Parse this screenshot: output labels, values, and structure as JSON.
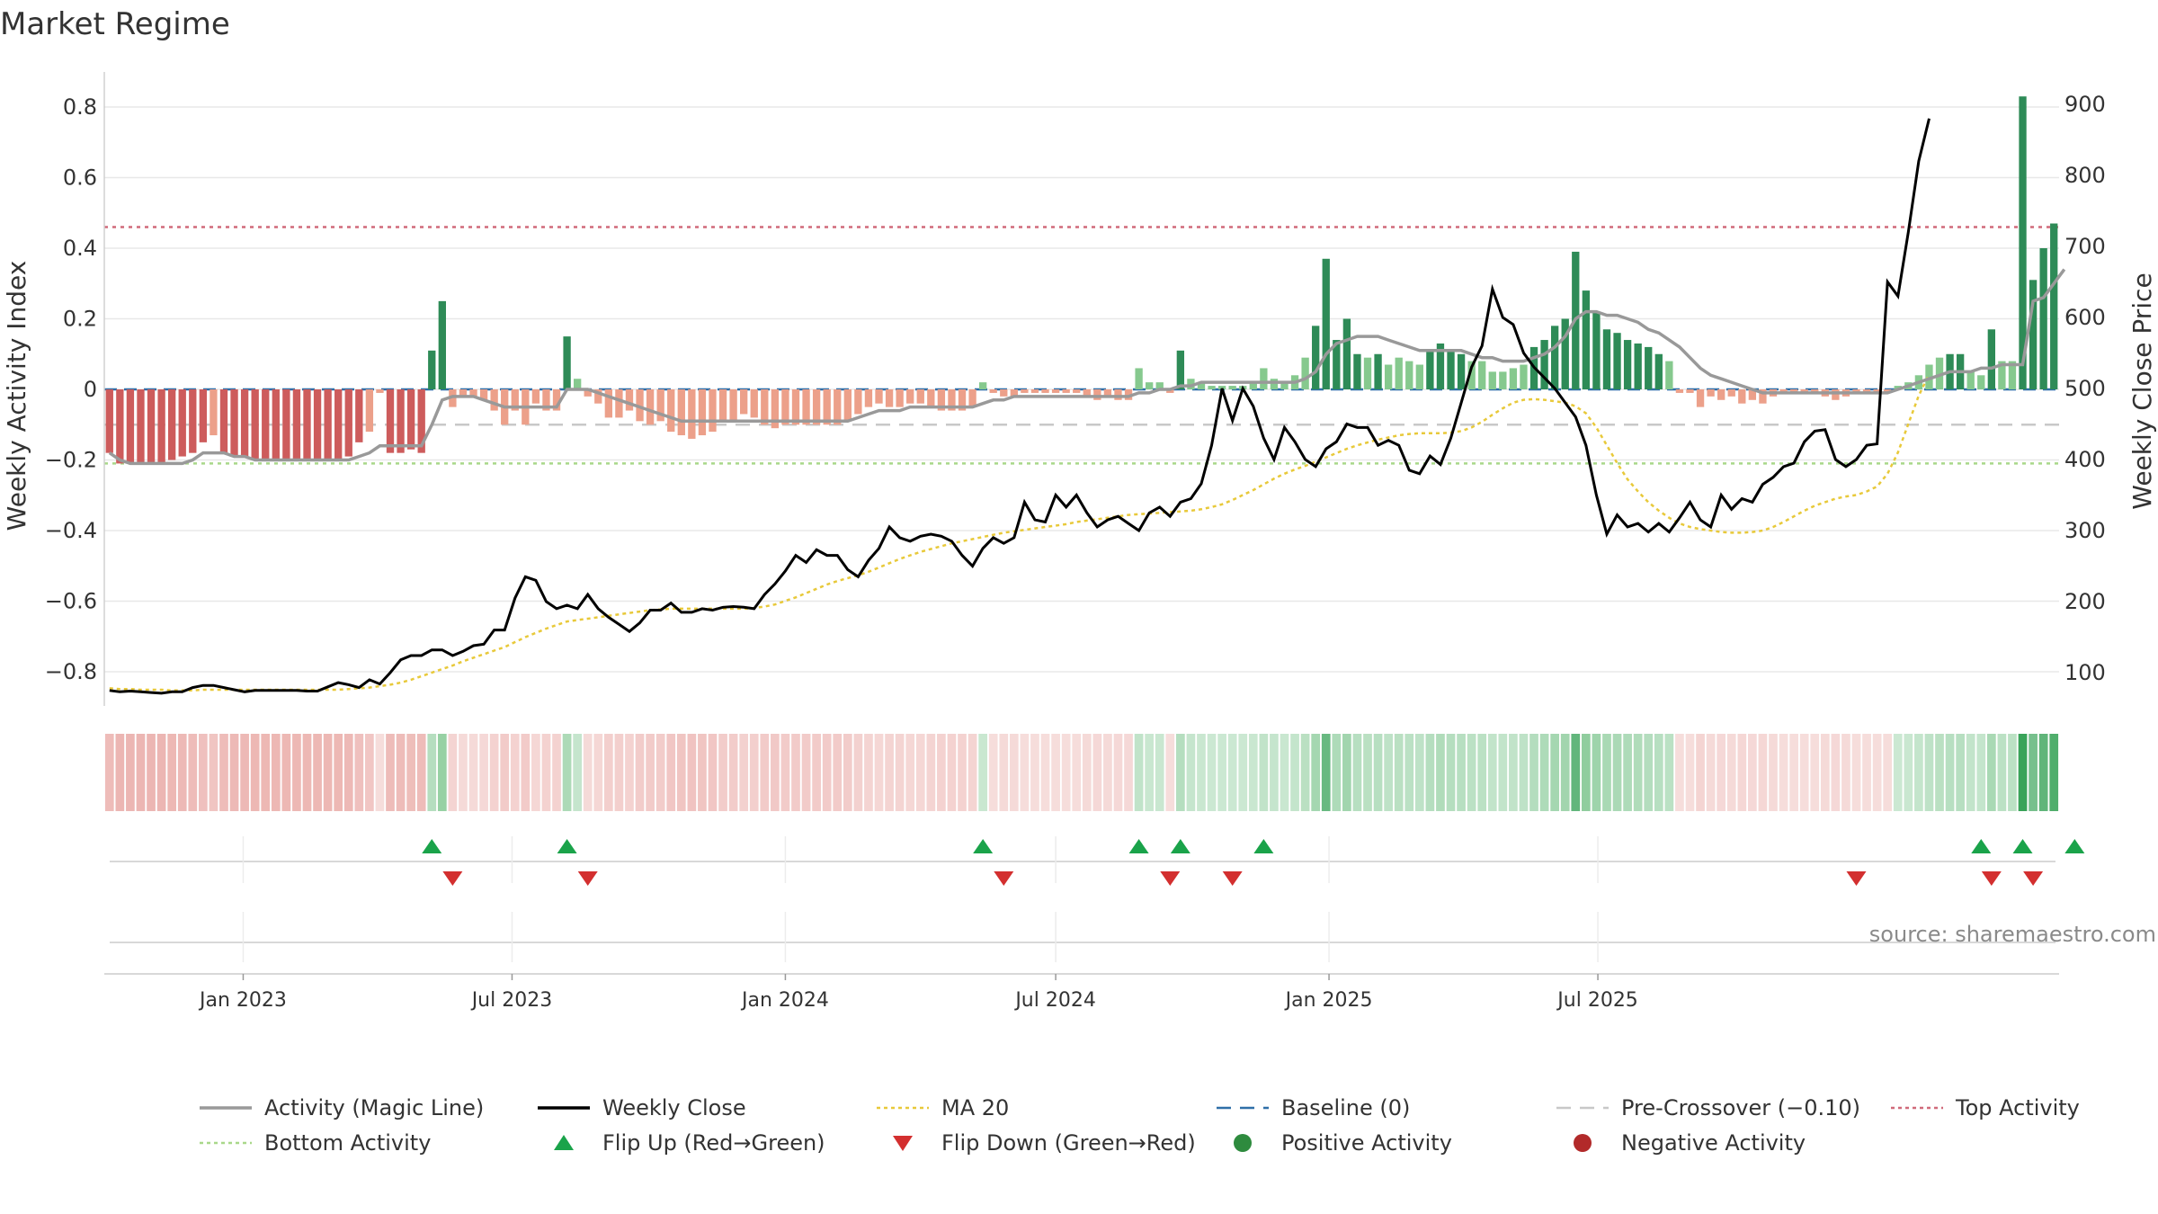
{
  "title": "Market Regime",
  "source": "source: sharemaestro.com",
  "chart_data": {
    "type": "bar",
    "start_date": "2022-10-03",
    "interval_days": 7,
    "y_left": {
      "label": "Weekly Activity Index",
      "min": -0.9,
      "max": 0.9,
      "ticks": [
        -0.8,
        -0.6,
        -0.4,
        -0.2,
        0,
        0.2,
        0.4,
        0.6,
        0.8
      ],
      "tick_labels": [
        "−0.8",
        "−0.6",
        "−0.4",
        "−0.2",
        "0",
        "0.2",
        "0.4",
        "0.6",
        "0.8"
      ]
    },
    "y_right": {
      "label": "Weekly Close Price",
      "min": 60,
      "max": 910,
      "ticks": [
        100,
        200,
        300,
        400,
        500,
        600,
        700,
        800,
        900
      ],
      "tick_labels": [
        "100",
        "200",
        "300",
        "400",
        "500",
        "600",
        "700",
        "800",
        "900"
      ]
    },
    "x_ticks": [
      {
        "date": "2023-01-01",
        "label": "Jan 2023"
      },
      {
        "date": "2023-07-01",
        "label": "Jul 2023"
      },
      {
        "date": "2024-01-01",
        "label": "Jan 2024"
      },
      {
        "date": "2024-07-01",
        "label": "Jul 2024"
      },
      {
        "date": "2025-01-01",
        "label": "Jan 2025"
      },
      {
        "date": "2025-07-01",
        "label": "Jul 2025"
      }
    ],
    "reference_lines": {
      "baseline": 0,
      "pre_crossover": -0.1,
      "top_activity": 0.46,
      "bottom_activity": -0.21
    },
    "activity": [
      -0.18,
      -0.21,
      -0.21,
      -0.21,
      -0.21,
      -0.21,
      -0.2,
      -0.19,
      -0.18,
      -0.15,
      -0.13,
      -0.18,
      -0.19,
      -0.19,
      -0.2,
      -0.2,
      -0.2,
      -0.2,
      -0.2,
      -0.2,
      -0.2,
      -0.2,
      -0.2,
      -0.19,
      -0.15,
      -0.12,
      -0.01,
      -0.18,
      -0.18,
      -0.17,
      -0.18,
      0.11,
      0.25,
      -0.05,
      -0.02,
      -0.02,
      -0.03,
      -0.06,
      -0.1,
      -0.06,
      -0.1,
      -0.04,
      -0.06,
      -0.06,
      0.15,
      0.03,
      -0.02,
      -0.04,
      -0.08,
      -0.08,
      -0.06,
      -0.09,
      -0.1,
      -0.09,
      -0.12,
      -0.13,
      -0.14,
      -0.13,
      -0.12,
      -0.09,
      -0.09,
      -0.07,
      -0.08,
      -0.1,
      -0.11,
      -0.1,
      -0.1,
      -0.1,
      -0.1,
      -0.1,
      -0.1,
      -0.09,
      -0.07,
      -0.05,
      -0.04,
      -0.05,
      -0.05,
      -0.04,
      -0.04,
      -0.05,
      -0.06,
      -0.06,
      -0.06,
      -0.05,
      0.02,
      -0.01,
      -0.02,
      -0.02,
      -0.01,
      -0.01,
      -0.01,
      -0.01,
      -0.01,
      -0.01,
      -0.02,
      -0.03,
      -0.02,
      -0.03,
      -0.03,
      0.06,
      0.02,
      0.02,
      -0.01,
      0.11,
      0.03,
      0.02,
      0.01,
      0.01,
      0.01,
      0.01,
      0.02,
      0.06,
      0.03,
      0.02,
      0.04,
      0.09,
      0.18,
      0.37,
      0.14,
      0.2,
      0.1,
      0.09,
      0.1,
      0.07,
      0.09,
      0.08,
      0.07,
      0.11,
      0.13,
      0.11,
      0.1,
      0.08,
      0.08,
      0.05,
      0.05,
      0.06,
      0.07,
      0.12,
      0.14,
      0.18,
      0.2,
      0.39,
      0.28,
      0.22,
      0.17,
      0.16,
      0.14,
      0.13,
      0.12,
      0.1,
      0.08,
      -0.01,
      -0.01,
      -0.05,
      -0.02,
      -0.03,
      -0.02,
      -0.04,
      -0.03,
      -0.04,
      -0.02,
      -0.01,
      -0.01,
      -0.01,
      -0.01,
      -0.02,
      -0.03,
      -0.02,
      -0.01,
      -0.01,
      -0.01,
      -0.01,
      0.01,
      0.02,
      0.04,
      0.07,
      0.09,
      0.1,
      0.1,
      0.05,
      0.04,
      0.17,
      0.08,
      0.08,
      0.83,
      0.31,
      0.4,
      0.47
    ],
    "magic_line": [
      -0.18,
      -0.2,
      -0.21,
      -0.21,
      -0.21,
      -0.21,
      -0.21,
      -0.21,
      -0.2,
      -0.18,
      -0.18,
      -0.18,
      -0.19,
      -0.19,
      -0.2,
      -0.2,
      -0.2,
      -0.2,
      -0.2,
      -0.2,
      -0.2,
      -0.2,
      -0.2,
      -0.2,
      -0.19,
      -0.18,
      -0.16,
      -0.16,
      -0.16,
      -0.16,
      -0.16,
      -0.1,
      -0.03,
      -0.02,
      -0.02,
      -0.02,
      -0.03,
      -0.04,
      -0.05,
      -0.05,
      -0.05,
      -0.05,
      -0.05,
      -0.05,
      0,
      0,
      0,
      -0.01,
      -0.02,
      -0.03,
      -0.04,
      -0.05,
      -0.06,
      -0.07,
      -0.08,
      -0.09,
      -0.09,
      -0.09,
      -0.09,
      -0.09,
      -0.09,
      -0.09,
      -0.09,
      -0.09,
      -0.09,
      -0.09,
      -0.09,
      -0.09,
      -0.09,
      -0.09,
      -0.09,
      -0.09,
      -0.08,
      -0.07,
      -0.06,
      -0.06,
      -0.06,
      -0.05,
      -0.05,
      -0.05,
      -0.05,
      -0.05,
      -0.05,
      -0.05,
      -0.04,
      -0.03,
      -0.03,
      -0.02,
      -0.02,
      -0.02,
      -0.02,
      -0.02,
      -0.02,
      -0.02,
      -0.02,
      -0.02,
      -0.02,
      -0.02,
      -0.02,
      -0.01,
      -0.01,
      0,
      0,
      0.01,
      0.01,
      0.02,
      0.02,
      0.02,
      0.02,
      0.02,
      0.02,
      0.02,
      0.02,
      0.02,
      0.02,
      0.03,
      0.05,
      0.1,
      0.13,
      0.14,
      0.15,
      0.15,
      0.15,
      0.14,
      0.13,
      0.12,
      0.11,
      0.11,
      0.11,
      0.11,
      0.11,
      0.1,
      0.09,
      0.09,
      0.08,
      0.08,
      0.08,
      0.09,
      0.1,
      0.12,
      0.15,
      0.2,
      0.22,
      0.22,
      0.21,
      0.21,
      0.2,
      0.19,
      0.17,
      0.16,
      0.14,
      0.12,
      0.09,
      0.06,
      0.04,
      0.03,
      0.02,
      0.01,
      0,
      -0.01,
      -0.01,
      -0.01,
      -0.01,
      -0.01,
      -0.01,
      -0.01,
      -0.01,
      -0.01,
      -0.01,
      -0.01,
      -0.01,
      -0.01,
      0,
      0.01,
      0.02,
      0.03,
      0.04,
      0.05,
      0.05,
      0.05,
      0.06,
      0.06,
      0.07,
      0.07,
      0.07,
      0.25,
      0.26,
      0.3,
      0.34
    ],
    "weekly_close": [
      75,
      73,
      74,
      73,
      72,
      71,
      73,
      73,
      79,
      82,
      82,
      79,
      76,
      73,
      75,
      75,
      75,
      75,
      75,
      74,
      74,
      80,
      86,
      83,
      79,
      90,
      84,
      100,
      118,
      124,
      124,
      132,
      132,
      124,
      130,
      138,
      140,
      160,
      160,
      205,
      235,
      230,
      200,
      190,
      195,
      190,
      210,
      190,
      178,
      168,
      158,
      170,
      188,
      188,
      198,
      185,
      185,
      190,
      188,
      192,
      193,
      192,
      190,
      210,
      225,
      243,
      265,
      255,
      273,
      265,
      265,
      245,
      235,
      258,
      275,
      305,
      290,
      285,
      292,
      295,
      292,
      285,
      265,
      250,
      275,
      290,
      282,
      290,
      340,
      315,
      312,
      350,
      333,
      350,
      325,
      305,
      315,
      320,
      310,
      300,
      325,
      333,
      320,
      340,
      345,
      366,
      420,
      500,
      455,
      500,
      475,
      430,
      400,
      445,
      425,
      400,
      390,
      415,
      425,
      450,
      445,
      445,
      420,
      427,
      420,
      385,
      380,
      405,
      393,
      430,
      480,
      530,
      560,
      640,
      600,
      590,
      550,
      530,
      515,
      500,
      480,
      460,
      420,
      350,
      295,
      322,
      305,
      310,
      298,
      310,
      298,
      318,
      340,
      315,
      305,
      350,
      330,
      345,
      340,
      365,
      375,
      390,
      395,
      425,
      440,
      442,
      400,
      390,
      400,
      420,
      422,
      650,
      630,
      720,
      820,
      880
    ],
    "ma20": [
      78,
      77,
      77,
      76,
      76,
      76,
      75,
      75,
      75,
      76,
      76,
      76,
      76,
      76,
      76,
      76,
      76,
      76,
      76,
      76,
      76,
      76,
      76,
      77,
      78,
      79,
      81,
      83,
      86,
      90,
      95,
      100,
      105,
      110,
      116,
      121,
      126,
      131,
      136,
      143,
      150,
      156,
      162,
      167,
      172,
      174,
      176,
      178,
      180,
      182,
      184,
      186,
      188,
      189,
      190,
      190,
      190,
      190,
      190,
      190,
      190,
      190,
      191,
      193,
      196,
      201,
      206,
      212,
      218,
      224,
      229,
      233,
      237,
      242,
      248,
      254,
      260,
      265,
      270,
      274,
      278,
      282,
      285,
      288,
      291,
      294,
      297,
      299,
      301,
      303,
      305,
      307,
      309,
      312,
      314,
      316,
      318,
      320,
      322,
      323,
      324,
      325,
      326,
      327,
      328,
      330,
      333,
      337,
      343,
      350,
      357,
      365,
      373,
      380,
      386,
      391,
      397,
      403,
      409,
      415,
      420,
      424,
      428,
      431,
      434,
      436,
      437,
      437,
      437,
      438,
      440,
      445,
      453,
      463,
      472,
      480,
      484,
      485,
      484,
      482,
      480,
      475,
      465,
      445,
      420,
      395,
      372,
      355,
      340,
      328,
      318,
      310,
      305,
      302,
      300,
      298,
      297,
      297,
      298,
      300,
      305,
      312,
      320,
      328,
      335,
      340,
      345,
      348,
      350,
      355,
      362,
      380,
      410,
      450,
      490,
      520
    ],
    "regime_strip": [
      -0.18,
      -0.21,
      -0.21,
      -0.21,
      -0.21,
      -0.21,
      -0.2,
      -0.19,
      -0.18,
      -0.15,
      -0.13,
      -0.18,
      -0.19,
      -0.19,
      -0.2,
      -0.2,
      -0.2,
      -0.2,
      -0.2,
      -0.2,
      -0.2,
      -0.2,
      -0.2,
      -0.19,
      -0.15,
      -0.12,
      -0.01,
      -0.18,
      -0.18,
      -0.17,
      -0.18,
      0.11,
      0.25,
      -0.05,
      -0.02,
      -0.02,
      -0.03,
      -0.06,
      -0.1,
      -0.06,
      -0.1,
      -0.04,
      -0.06,
      -0.06,
      0.15,
      0.03,
      -0.02,
      -0.04,
      -0.08,
      -0.08,
      -0.06,
      -0.09,
      -0.1,
      -0.09,
      -0.12,
      -0.13,
      -0.14,
      -0.13,
      -0.12,
      -0.09,
      -0.09,
      -0.07,
      -0.08,
      -0.1,
      -0.11,
      -0.1,
      -0.1,
      -0.1,
      -0.1,
      -0.1,
      -0.1,
      -0.09,
      -0.07,
      -0.05,
      -0.04,
      -0.05,
      -0.05,
      -0.04,
      -0.04,
      -0.05,
      -0.06,
      -0.06,
      -0.06,
      -0.05,
      0.02,
      -0.01,
      -0.02,
      -0.02,
      -0.01,
      -0.01,
      -0.01,
      -0.01,
      -0.01,
      -0.01,
      -0.02,
      -0.03,
      -0.02,
      -0.03,
      -0.03,
      0.06,
      0.02,
      0.02,
      -0.01,
      0.11,
      0.03,
      0.02,
      0.01,
      0.01,
      0.01,
      0.01,
      0.02,
      0.06,
      0.03,
      0.02,
      0.04,
      0.09,
      0.18,
      0.37,
      0.14,
      0.2,
      0.1,
      0.09,
      0.1,
      0.07,
      0.09,
      0.08,
      0.07,
      0.11,
      0.13,
      0.11,
      0.1,
      0.08,
      0.08,
      0.05,
      0.05,
      0.06,
      0.07,
      0.12,
      0.14,
      0.18,
      0.2,
      0.39,
      0.28,
      0.22,
      0.17,
      0.16,
      0.14,
      0.13,
      0.12,
      0.1,
      0.08,
      -0.01,
      -0.01,
      -0.05,
      -0.02,
      -0.03,
      -0.02,
      -0.04,
      -0.03,
      -0.04,
      -0.02,
      -0.01,
      -0.01,
      -0.01,
      -0.01,
      -0.02,
      -0.03,
      -0.02,
      -0.01,
      -0.01,
      -0.01,
      -0.01,
      0.01,
      0.02,
      0.04,
      0.07,
      0.09,
      0.1,
      0.1,
      0.05,
      0.04,
      0.17,
      0.08,
      0.08,
      0.83,
      0.31,
      0.4,
      0.47
    ],
    "flip_up_weeks": [
      31,
      44,
      84,
      99,
      103,
      111,
      180,
      184,
      189
    ],
    "flip_down_weeks": [
      33,
      46,
      86,
      102,
      108,
      168,
      181,
      185
    ],
    "legend": [
      {
        "label": "Activity (Magic Line)",
        "style": "line",
        "color": "#999999"
      },
      {
        "label": "Weekly Close",
        "style": "line",
        "color": "#000000"
      },
      {
        "label": "MA 20",
        "style": "dotted",
        "color": "#e8c93a"
      },
      {
        "label": "Baseline (0)",
        "style": "dashed",
        "color": "#2f6fa8"
      },
      {
        "label": "Pre-Crossover (−0.10)",
        "style": "dashed",
        "color": "#c8c8c8"
      },
      {
        "label": "Top Activity",
        "style": "dotted",
        "color": "#d06a7a"
      },
      {
        "label": "Bottom Activity",
        "style": "dotted",
        "color": "#a9d88a"
      },
      {
        "label": "Flip Up (Red→Green)",
        "style": "triangle-up",
        "color": "#1aa34a"
      },
      {
        "label": "Flip Down (Green→Red)",
        "style": "triangle-down",
        "color": "#d32f2f"
      },
      {
        "label": "Positive Activity",
        "style": "circle",
        "color": "#2e8b3e"
      },
      {
        "label": "Negative Activity",
        "style": "circle",
        "color": "#b22a2a"
      }
    ],
    "colors": {
      "strong_green": "#2e8b57",
      "light_green": "#86c98e",
      "strong_red": "#cd5c5c",
      "light_red": "#eca08a",
      "grid": "#e8e8e8"
    }
  }
}
